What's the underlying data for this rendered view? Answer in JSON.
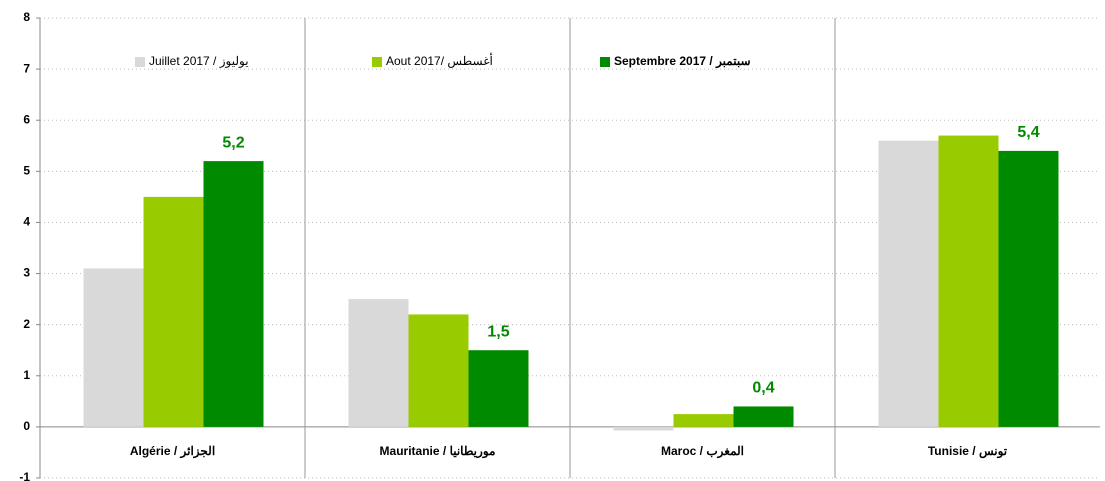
{
  "chart_data": {
    "type": "bar",
    "categories": [
      "Algérie / الجزائر",
      "Mauritanie / موريطانيا",
      "Maroc / المغرب",
      "Tunisie / تونس"
    ],
    "series": [
      {
        "name": "يوليوز / Juillet 2017",
        "color": "#d9d9d9",
        "values": [
          3.1,
          2.5,
          -0.07,
          5.6
        ]
      },
      {
        "name": "أغسطس /Aout 2017",
        "color": "#99cc00",
        "values": [
          4.5,
          2.2,
          0.25,
          5.7
        ]
      },
      {
        "name": "سبتمبر / Septembre 2017",
        "color": "#008a00",
        "values": [
          5.2,
          1.5,
          0.4,
          5.4
        ],
        "value_labels": [
          "5,2",
          "1,5",
          "0,4",
          "5,4"
        ]
      }
    ],
    "ylim": [
      -1,
      8
    ],
    "yticks": [
      -1,
      0,
      1,
      2,
      3,
      4,
      5,
      6,
      7,
      8
    ],
    "grid": true
  }
}
